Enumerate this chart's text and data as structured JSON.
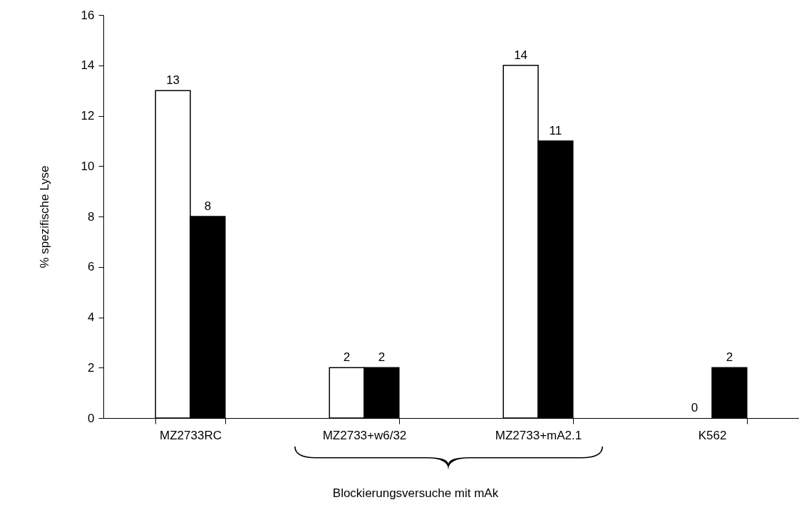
{
  "chart_data": {
    "type": "bar",
    "ylabel": "% spezifische Lyse",
    "categories": [
      "MZ2733RC",
      "MZ2733+w6/32",
      "MZ2733+mA2.1",
      "K562"
    ],
    "series": [
      {
        "color": "#ffffff",
        "values": [
          13,
          2,
          14,
          0
        ]
      },
      {
        "color": "#000000",
        "values": [
          8,
          2,
          11,
          2
        ]
      }
    ],
    "ylim": [
      0,
      16
    ],
    "yticks": [
      0,
      2,
      4,
      6,
      8,
      10,
      12,
      14,
      16
    ],
    "grid": false,
    "data_labels": true,
    "legend": false,
    "annotations": [
      "Blockierungsversuche mit mAk"
    ]
  }
}
